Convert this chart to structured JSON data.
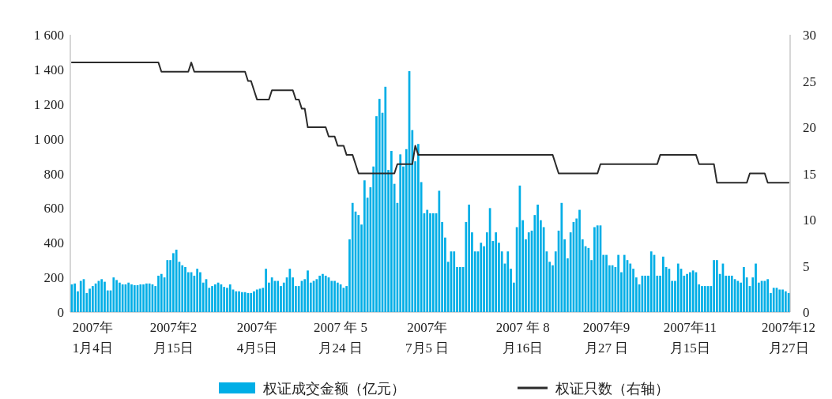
{
  "chart_data": {
    "type": "bar",
    "legend": "bottom",
    "grid": false,
    "categories": [
      null,
      null,
      null,
      null,
      null,
      null,
      null,
      "2007年\n1月4日",
      null,
      null,
      null,
      null,
      null,
      null,
      null,
      null,
      null,
      null,
      null,
      null,
      null,
      null,
      null,
      null,
      null,
      null,
      null,
      null,
      null,
      null,
      null,
      null,
      null,
      null,
      "2007年2\n月15日",
      null,
      null,
      null,
      null,
      null,
      null,
      null,
      null,
      null,
      null,
      null,
      null,
      null,
      null,
      null,
      null,
      null,
      null,
      null,
      null,
      null,
      null,
      null,
      null,
      null,
      null,
      null,
      "2007年\n4月5日",
      null,
      null,
      null,
      null,
      null,
      null,
      null,
      null,
      null,
      null,
      null,
      null,
      null,
      null,
      null,
      null,
      null,
      null,
      null,
      null,
      null,
      null,
      null,
      null,
      null,
      null,
      null,
      "2007 年 5\n月24  日",
      null,
      null,
      null,
      null,
      null,
      null,
      null,
      null,
      null,
      null,
      null,
      null,
      null,
      null,
      null,
      null,
      null,
      null,
      null,
      null,
      null,
      null,
      null,
      null,
      null,
      null,
      null,
      null,
      "2007年\n7月5 日",
      null,
      null,
      null,
      null,
      null,
      null,
      null,
      null,
      null,
      null,
      null,
      null,
      null,
      null,
      null,
      null,
      null,
      null,
      null,
      null,
      null,
      null,
      null,
      null,
      null,
      null,
      null,
      null,
      null,
      null,
      null,
      "2007 年 8\n月16日",
      null,
      null,
      null,
      null,
      null,
      null,
      null,
      null,
      null,
      null,
      null,
      null,
      null,
      null,
      null,
      null,
      null,
      null,
      null,
      null,
      null,
      null,
      null,
      null,
      null,
      null,
      null,
      "2007年9\n月27 日",
      null,
      null,
      null,
      null,
      null,
      null,
      null,
      null,
      null,
      null,
      null,
      null,
      null,
      null,
      null,
      null,
      null,
      null,
      null,
      null,
      null,
      null,
      null,
      null,
      null,
      null,
      null,
      "2007年11\n月15日",
      null,
      null,
      null,
      null,
      null,
      null,
      null,
      null,
      null,
      null,
      null,
      null,
      null,
      null,
      null,
      null,
      null,
      null,
      null,
      null,
      null,
      null,
      null,
      null,
      null,
      null,
      null,
      null,
      null,
      null,
      null,
      null,
      "2007年12\n月27日"
    ],
    "series": [
      {
        "name": "权证成交金额（亿元）",
        "color": "#00aee6",
        "values": [
          160,
          165,
          120,
          180,
          190,
          110,
          135,
          150,
          165,
          180,
          190,
          175,
          125,
          125,
          200,
          185,
          170,
          160,
          160,
          170,
          160,
          155,
          155,
          160,
          160,
          165,
          165,
          160,
          150,
          210,
          220,
          200,
          300,
          300,
          340,
          360,
          290,
          270,
          260,
          230,
          230,
          210,
          250,
          230,
          170,
          190,
          140,
          150,
          160,
          170,
          160,
          145,
          140,
          160,
          130,
          120,
          120,
          115,
          115,
          110,
          110,
          120,
          130,
          135,
          140,
          250,
          170,
          200,
          180,
          180,
          150,
          170,
          200,
          250,
          200,
          150,
          150,
          180,
          190,
          240,
          170,
          180,
          190,
          210,
          220,
          210,
          200,
          180,
          180,
          170,
          160,
          140,
          150,
          420,
          630,
          580,
          560,
          505,
          760,
          660,
          720,
          840,
          1130,
          1230,
          1150,
          1300,
          820,
          930,
          740,
          630,
          910,
          840,
          940,
          1390,
          1050,
          870,
          970,
          750,
          570,
          590,
          570,
          570,
          570,
          700,
          520,
          430,
          290,
          350,
          350,
          260,
          260,
          260,
          520,
          620,
          460,
          350,
          350,
          400,
          380,
          460,
          600,
          410,
          460,
          400,
          350,
          280,
          350,
          250,
          170,
          490,
          730,
          530,
          420,
          460,
          470,
          560,
          620,
          530,
          490,
          350,
          290,
          270,
          350,
          470,
          630,
          420,
          310,
          460,
          520,
          540,
          590,
          420,
          380,
          370,
          300,
          490,
          500,
          500,
          330,
          330,
          270,
          270,
          260,
          330,
          230,
          330,
          300,
          280,
          250,
          200,
          160,
          210,
          210,
          210,
          350,
          330,
          210,
          210,
          320,
          260,
          250,
          180,
          180,
          280,
          250,
          210,
          220,
          230,
          240,
          230,
          160,
          150,
          150,
          150,
          150,
          300,
          300,
          220,
          280,
          210,
          210,
          210,
          190,
          180,
          170,
          260,
          200,
          150,
          200,
          280,
          170,
          180,
          180,
          190,
          110,
          140,
          140,
          130,
          130,
          120,
          110
        ]
      },
      {
        "name": "权证只数（右轴）",
        "type": "line",
        "axis": "y2",
        "color": "#2b2b2b",
        "values": [
          27,
          27,
          27,
          27,
          27,
          27,
          27,
          27,
          27,
          27,
          27,
          27,
          27,
          27,
          27,
          27,
          27,
          27,
          27,
          27,
          27,
          27,
          27,
          27,
          27,
          27,
          27,
          27,
          27,
          27,
          26,
          26,
          26,
          26,
          26,
          26,
          26,
          26,
          26,
          26,
          27,
          26,
          26,
          26,
          26,
          26,
          26,
          26,
          26,
          26,
          26,
          26,
          26,
          26,
          26,
          26,
          26,
          26,
          26,
          25,
          25,
          24,
          23,
          23,
          23,
          23,
          23,
          24,
          24,
          24,
          24,
          24,
          24,
          24,
          24,
          23,
          23,
          22,
          22,
          20,
          20,
          20,
          20,
          20,
          20,
          20,
          19,
          19,
          19,
          18,
          18,
          18,
          17,
          17,
          17,
          16,
          15,
          15,
          15,
          15,
          15,
          15,
          15,
          15,
          15,
          15,
          15,
          15,
          15,
          16,
          16,
          16,
          16,
          16,
          16,
          18,
          17,
          17,
          17,
          17,
          17,
          17,
          17,
          17,
          17,
          17,
          17,
          17,
          17,
          17,
          17,
          17,
          17,
          17,
          17,
          17,
          17,
          17,
          17,
          17,
          17,
          17,
          17,
          17,
          17,
          17,
          17,
          17,
          17,
          17,
          17,
          17,
          17,
          17,
          17,
          17,
          17,
          17,
          17,
          17,
          17,
          17,
          16,
          15,
          15,
          15,
          15,
          15,
          15,
          15,
          15,
          15,
          15,
          15,
          15,
          15,
          15,
          16,
          16,
          16,
          16,
          16,
          16,
          16,
          16,
          16,
          16,
          16,
          16,
          16,
          16,
          16,
          16,
          16,
          16,
          16,
          16,
          17,
          17,
          17,
          17,
          17,
          17,
          17,
          17,
          17,
          17,
          17,
          17,
          17,
          16,
          16,
          16,
          16,
          16,
          16,
          14,
          14,
          14,
          14,
          14,
          14,
          14,
          14,
          14,
          14,
          14,
          15,
          15,
          15,
          15,
          15,
          15,
          14,
          14,
          14,
          14,
          14,
          14,
          14,
          14
        ]
      }
    ],
    "ylim": [
      0,
      1600
    ],
    "yticks": [
      0,
      200,
      400,
      600,
      800,
      {
        "value": 1000,
        "label": "1 000"
      },
      {
        "value": 1200,
        "label": "1 200"
      },
      {
        "value": 1400,
        "label": "1 400"
      },
      {
        "value": 1600,
        "label": "1 600"
      }
    ],
    "y2lim": [
      0,
      30
    ],
    "y2ticks": [
      0,
      5,
      10,
      15,
      20,
      25,
      30
    ]
  }
}
